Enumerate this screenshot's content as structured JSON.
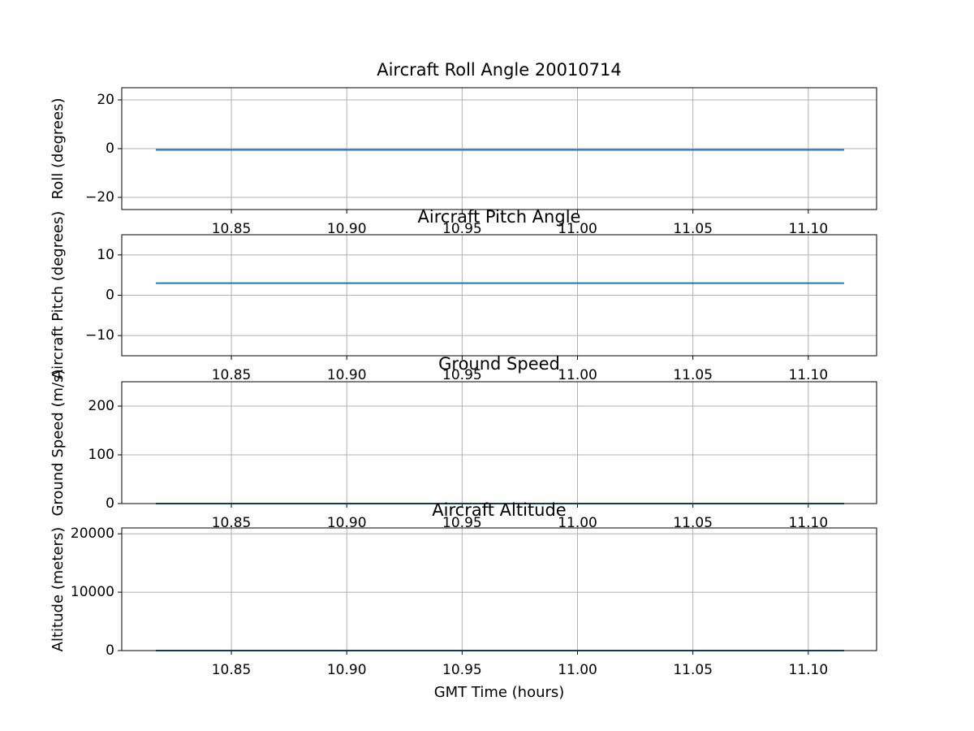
{
  "chart_data": [
    {
      "type": "line",
      "title": "Aircraft Roll Angle 20010714",
      "ylabel": "Roll (degrees)",
      "x": [
        10.8173,
        11.1155
      ],
      "values": [
        -0.5,
        -0.5
      ],
      "color": "#1f77b4",
      "xlim": [
        10.8025,
        11.1296
      ],
      "ylim": [
        -25,
        25
      ],
      "xticks": [
        10.85,
        {
          "value": 10.9,
          "label": "10.90"
        },
        10.95,
        {
          "value": 11.0,
          "label": "11.00"
        },
        11.05,
        {
          "value": 11.1,
          "label": "11.10"
        }
      ],
      "yticks": [
        {
          "value": -20,
          "label": "−20"
        },
        0,
        20
      ],
      "grid": true
    },
    {
      "type": "line",
      "title": "Aircraft Pitch Angle",
      "ylabel": "Aircraft Pitch (degrees)",
      "x": [
        10.8173,
        11.1155
      ],
      "values": [
        3,
        3
      ],
      "color": "#1f77b4",
      "xlim": [
        10.8025,
        11.1296
      ],
      "ylim": [
        -15,
        15
      ],
      "xticks": [
        10.85,
        {
          "value": 10.9,
          "label": "10.90"
        },
        10.95,
        {
          "value": 11.0,
          "label": "11.00"
        },
        11.05,
        {
          "value": 11.1,
          "label": "11.10"
        }
      ],
      "yticks": [
        {
          "value": -10,
          "label": "−10"
        },
        0,
        10
      ],
      "grid": true
    },
    {
      "type": "line",
      "title": "Ground Speed",
      "ylabel": "Ground Speed (m/s)",
      "x": [
        10.8173,
        11.1155
      ],
      "values": [
        0,
        0
      ],
      "color": "#1f77b4",
      "xlim": [
        10.8025,
        11.1296
      ],
      "ylim": [
        0,
        250
      ],
      "xticks": [
        10.85,
        {
          "value": 10.9,
          "label": "10.90"
        },
        10.95,
        {
          "value": 11.0,
          "label": "11.00"
        },
        11.05,
        {
          "value": 11.1,
          "label": "11.10"
        }
      ],
      "yticks": [
        0,
        100,
        200
      ],
      "grid": true
    },
    {
      "type": "line",
      "title": "Aircraft Altitude",
      "ylabel": "Altitude (meters)",
      "xlabel": "GMT Time (hours)",
      "x": [
        10.8173,
        11.1155
      ],
      "values": [
        0,
        0
      ],
      "color": "#1f77b4",
      "xlim": [
        10.8025,
        11.1296
      ],
      "ylim": [
        0,
        21000
      ],
      "xticks": [
        10.85,
        {
          "value": 10.9,
          "label": "10.90"
        },
        10.95,
        {
          "value": 11.0,
          "label": "11.00"
        },
        11.05,
        {
          "value": 11.1,
          "label": "11.10"
        }
      ],
      "yticks": [
        0,
        10000,
        20000
      ],
      "grid": true
    }
  ]
}
